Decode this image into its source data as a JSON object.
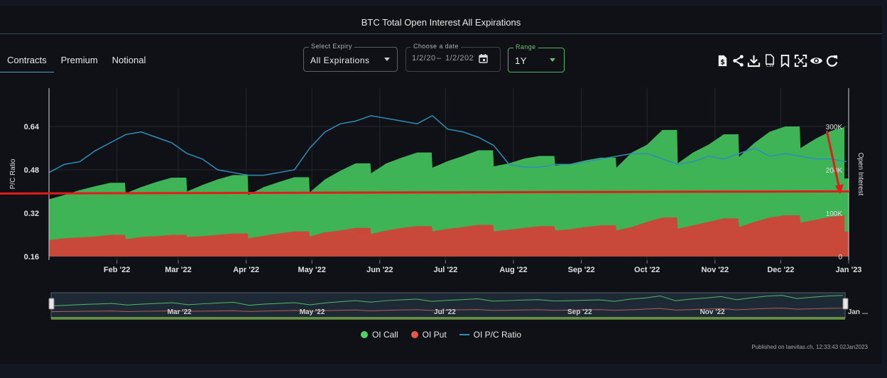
{
  "title": "BTC Total Open Interest All Expirations",
  "tabs": [
    {
      "label": "Contracts",
      "active": true
    },
    {
      "label": "Premium",
      "active": false
    },
    {
      "label": "Notional",
      "active": false
    }
  ],
  "expiry": {
    "label": "Select Expiry",
    "value": "All Expirations"
  },
  "date": {
    "label": "Choose a date",
    "from": "1/2/20",
    "sep": "–",
    "to": "1/2/202"
  },
  "range": {
    "label": "Range",
    "value": "1Y"
  },
  "toolbar_icons": [
    "dollar-file-icon",
    "share-icon",
    "download-icon",
    "csv-icon",
    "bookmark-icon",
    "fullscreen-icon",
    "eye-icon",
    "refresh-icon"
  ],
  "legend": [
    {
      "name": "OI Call",
      "color": "#4ed165",
      "marker": "dot"
    },
    {
      "name": "OI Put",
      "color": "#e8574a",
      "marker": "dot"
    },
    {
      "name": "OI P/C Ratio",
      "color": "#2e8fb8",
      "marker": "line"
    }
  ],
  "published": "Published on laevitas.ch, 12:33:43 02Jan2023",
  "colors": {
    "call": "#3eb457",
    "put": "#c8483a",
    "ratio": "#2e8fb8",
    "annotation": "#e41b1b"
  },
  "chart_data": {
    "type": "area",
    "title": "BTC Total Open Interest All Expirations",
    "xlabel": "",
    "ylabel_left": "P/C Ratio",
    "ylabel_right": "Open Interest",
    "x_ticks": [
      "Feb '22",
      "Mar '22",
      "Apr '22",
      "May '22",
      "Jun '22",
      "Jul '22",
      "Aug '22",
      "Sep '22",
      "Oct '22",
      "Nov '22",
      "Dec '22",
      "Jan '23"
    ],
    "y_left_ticks": [
      "0.16",
      "0.32",
      "0.48",
      "0.64"
    ],
    "y_left_range": [
      0.16,
      0.64
    ],
    "y_right_ticks": [
      "0",
      "100K",
      "200K",
      "300K"
    ],
    "y_right_range": [
      0,
      300000
    ],
    "navigator_ticks": [
      "Mar '22",
      "May '22",
      "Jul '22",
      "Sep '22",
      "Nov '22",
      "Jan ..."
    ],
    "grid": true,
    "legend_position": "bottom",
    "x": [
      "2022-01-01",
      "2022-01-08",
      "2022-01-15",
      "2022-01-22",
      "2022-01-29",
      "2022-02-05",
      "2022-02-12",
      "2022-02-19",
      "2022-02-26",
      "2022-03-05",
      "2022-03-12",
      "2022-03-19",
      "2022-03-26",
      "2022-04-02",
      "2022-04-09",
      "2022-04-16",
      "2022-04-23",
      "2022-04-30",
      "2022-05-07",
      "2022-05-14",
      "2022-05-21",
      "2022-05-28",
      "2022-06-04",
      "2022-06-11",
      "2022-06-18",
      "2022-06-25",
      "2022-07-02",
      "2022-07-09",
      "2022-07-16",
      "2022-07-23",
      "2022-07-30",
      "2022-08-06",
      "2022-08-13",
      "2022-08-20",
      "2022-08-27",
      "2022-09-03",
      "2022-09-10",
      "2022-09-17",
      "2022-09-24",
      "2022-10-01",
      "2022-10-08",
      "2022-10-15",
      "2022-10-22",
      "2022-10-29",
      "2022-11-05",
      "2022-11-12",
      "2022-11-19",
      "2022-11-26",
      "2022-12-03",
      "2022-12-10",
      "2022-12-17",
      "2022-12-24",
      "2022-12-31"
    ],
    "series": [
      {
        "name": "OI Call",
        "unit": "contracts",
        "values": [
          132000,
          142000,
          153000,
          162000,
          170000,
          146000,
          160000,
          172000,
          182000,
          150000,
          165000,
          178000,
          188000,
          142000,
          160000,
          172000,
          183000,
          148000,
          178000,
          198000,
          215000,
          192000,
          215000,
          228000,
          240000,
          205000,
          220000,
          232000,
          245000,
          208000,
          215000,
          226000,
          232000,
          210000,
          214000,
          222000,
          228000,
          205000,
          240000,
          258000,
          292000,
          215000,
          240000,
          258000,
          282000,
          230000,
          262000,
          288000,
          300000,
          250000,
          272000,
          290000,
          300000
        ]
      },
      {
        "name": "OI Put",
        "unit": "contracts",
        "values": [
          38000,
          42000,
          44000,
          46000,
          50000,
          40000,
          45000,
          47000,
          50000,
          45000,
          47000,
          50000,
          53000,
          42000,
          48000,
          53000,
          58000,
          46000,
          56000,
          60000,
          66000,
          52000,
          60000,
          66000,
          70000,
          58000,
          64000,
          68000,
          73000,
          58000,
          62000,
          66000,
          70000,
          60000,
          63000,
          68000,
          72000,
          60000,
          68000,
          80000,
          90000,
          64000,
          72000,
          80000,
          88000,
          68000,
          80000,
          90000,
          95000,
          78000,
          85000,
          92000,
          95000
        ]
      },
      {
        "name": "OI P/C Ratio",
        "unit": "ratio",
        "values": [
          0.47,
          0.5,
          0.51,
          0.55,
          0.58,
          0.61,
          0.62,
          0.6,
          0.58,
          0.54,
          0.52,
          0.48,
          0.47,
          0.46,
          0.46,
          0.47,
          0.48,
          0.56,
          0.62,
          0.65,
          0.66,
          0.68,
          0.67,
          0.66,
          0.65,
          0.68,
          0.63,
          0.62,
          0.6,
          0.57,
          0.5,
          0.49,
          0.49,
          0.5,
          0.5,
          0.51,
          0.52,
          0.53,
          0.54,
          0.54,
          0.52,
          0.5,
          0.51,
          0.53,
          0.52,
          0.54,
          0.56,
          0.53,
          0.54,
          0.53,
          0.52,
          0.52,
          0.51
        ]
      }
    ],
    "annotations": [
      {
        "type": "horizontal-line",
        "y_open_interest": 147000
      },
      {
        "type": "arrow",
        "from": {
          "x": "2022-12-22",
          "y_open_interest": 290000
        },
        "to": {
          "x": "2022-12-31",
          "y_open_interest": 147000
        }
      }
    ]
  }
}
